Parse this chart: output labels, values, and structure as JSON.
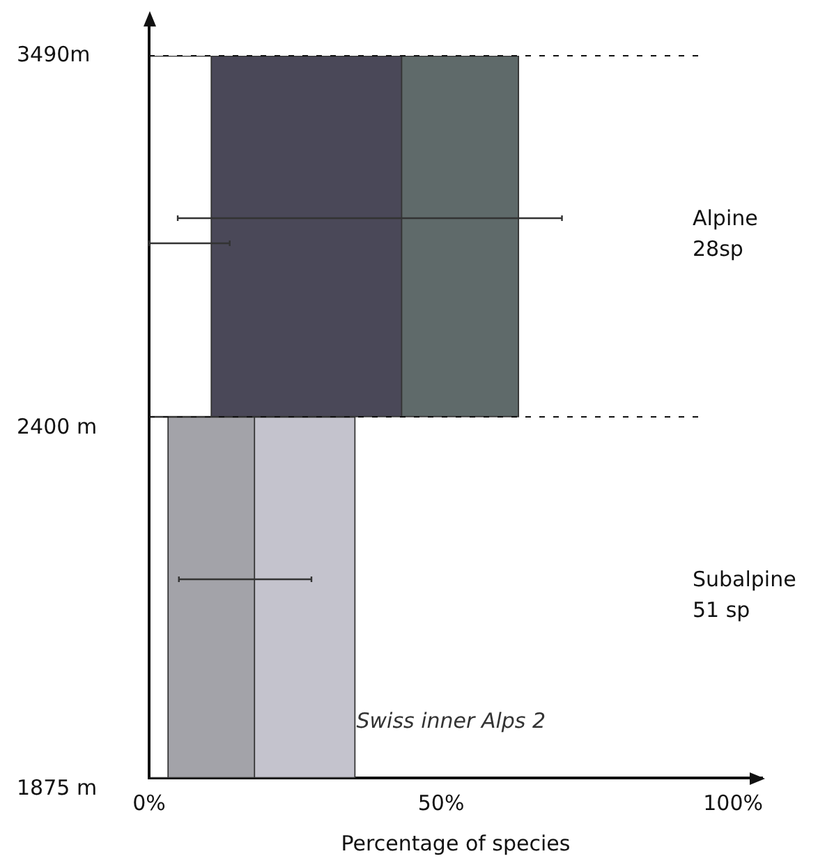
{
  "chart_data": {
    "type": "bar",
    "orientation": "horizontal",
    "stacked": true,
    "xlabel": "Percentage of species",
    "categories": [
      "Alpine 28sp",
      "Subalpine 51 sp"
    ],
    "series": [
      {
        "colors": [
          "#ffffff",
          "#ffffff"
        ],
        "values": [
          10.7,
          3.3
        ],
        "errors": [
          [
            0,
            13.8
          ],
          null
        ]
      },
      {
        "colors": [
          "#4a4858",
          "#a3a3a9"
        ],
        "values": [
          32.6,
          14.8
        ],
        "errors": [
          [
            4.9,
            70.7
          ],
          [
            5.1,
            27.8
          ]
        ]
      },
      {
        "colors": [
          "#5f6a6a",
          "#c4c3cd"
        ],
        "values": [
          20.0,
          17.2
        ]
      }
    ],
    "xlim": [
      0,
      105
    ],
    "xticks": [
      {
        "value": 0,
        "label": "0%"
      },
      {
        "value": 50,
        "label": "50%"
      },
      {
        "value": 100,
        "label": "100%"
      }
    ],
    "annotations": [
      "3490m",
      "2400 m",
      "1875 m",
      "Swiss inner Alps 2"
    ],
    "grid": false,
    "legend": false
  }
}
